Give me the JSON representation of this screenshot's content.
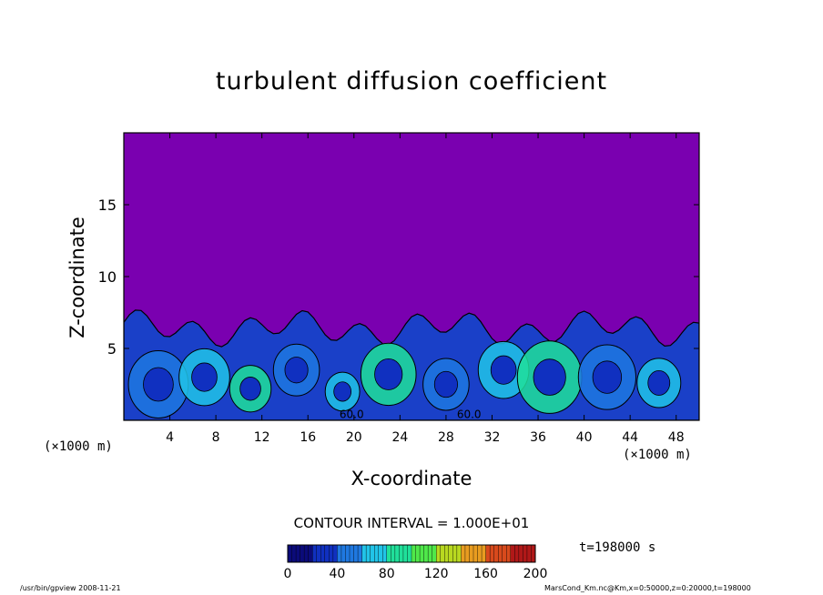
{
  "chart_data": {
    "type": "heatmap",
    "title": "turbulent diffusion coefficient",
    "xlabel": "X-coordinate",
    "ylabel": "Z-coordinate",
    "x_unit_left": "(×1000 m)",
    "x_unit_right": "(×1000 m)",
    "xlim": [
      0,
      50
    ],
    "ylim": [
      0,
      20
    ],
    "x_ticks": [
      "4",
      "8",
      "12",
      "16",
      "20",
      "24",
      "28",
      "32",
      "36",
      "40",
      "44",
      "48"
    ],
    "x_tick_values": [
      4,
      8,
      12,
      16,
      20,
      24,
      28,
      32,
      36,
      40,
      44,
      48
    ],
    "y_ticks": [
      "5",
      "10",
      "15"
    ],
    "y_tick_values": [
      5,
      10,
      15
    ],
    "contour_interval": "CONTOUR INTERVAL = 1.000E+01",
    "contour_labels": [
      {
        "text": "60.0",
        "x": 19.8,
        "y": 0.1
      },
      {
        "text": "60.0",
        "x": 30.0,
        "y": 0.1
      }
    ],
    "colorbar": {
      "min": 0,
      "max": 200,
      "ticks": [
        "0",
        "40",
        "80",
        "120",
        "160",
        "200"
      ],
      "tick_values": [
        0,
        40,
        80,
        120,
        160,
        200
      ],
      "colors": [
        "#0b0b7a",
        "#1030c0",
        "#1f78e0",
        "#21c4e8",
        "#20e09a",
        "#4fe84a",
        "#b8d820",
        "#e89c20",
        "#d84a1c",
        "#b01818"
      ]
    },
    "background_color": "#7a00b0",
    "turbulent_layer_top_km": 7,
    "time_label": "t=198000 s"
  },
  "footer": {
    "left": "/usr/bin/gpview   2008-11-21",
    "right": "MarsCond_Km.nc@Km,x=0:50000,z=0:20000,t=198000"
  }
}
